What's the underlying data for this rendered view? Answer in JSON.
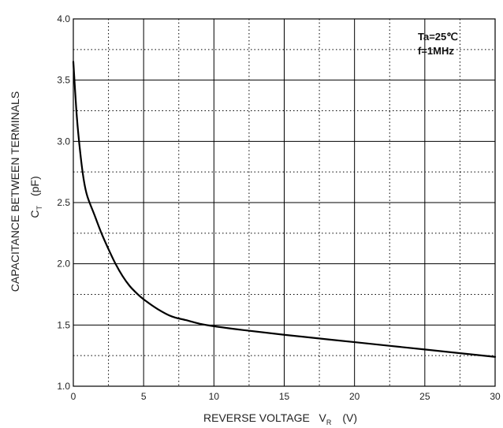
{
  "chart_data": {
    "type": "line",
    "title": "",
    "xlabel": {
      "main": "REVERSE VOLTAGE   V",
      "sub": "R",
      "unit": "(V)"
    },
    "ylabel": {
      "line1": "CAPACITANCE BETWEEN TERMINALS",
      "line2_main": "C",
      "line2_sub": "T",
      "line2_unit": "(pF)"
    },
    "xlim": [
      0,
      30
    ],
    "ylim": [
      1.0,
      4.0
    ],
    "xticks": [
      0,
      5,
      10,
      15,
      20,
      25,
      30
    ],
    "xtick_labels": [
      "0",
      "5",
      "10",
      "15",
      "20",
      "25",
      "30"
    ],
    "yticks": [
      1.0,
      1.5,
      2.0,
      2.5,
      3.0,
      3.5,
      4.0
    ],
    "ytick_labels": [
      "1.0",
      "1.5",
      "2.0",
      "2.5",
      "3.0",
      "3.5",
      "4.0"
    ],
    "grid": {
      "major": true,
      "minor": "dotted"
    },
    "annotations": [
      "Ta=25℃",
      "f=1MHz"
    ],
    "series": [
      {
        "x": [
          0,
          0.25,
          0.5,
          0.75,
          1,
          1.5,
          2,
          2.5,
          3,
          3.5,
          4,
          4.5,
          5,
          6,
          7,
          8,
          9,
          10,
          12,
          15,
          20,
          25,
          30
        ],
        "y": [
          3.65,
          3.2,
          2.9,
          2.68,
          2.55,
          2.4,
          2.25,
          2.12,
          2.0,
          1.9,
          1.82,
          1.76,
          1.71,
          1.63,
          1.57,
          1.54,
          1.51,
          1.49,
          1.46,
          1.42,
          1.36,
          1.3,
          1.24
        ]
      }
    ]
  }
}
